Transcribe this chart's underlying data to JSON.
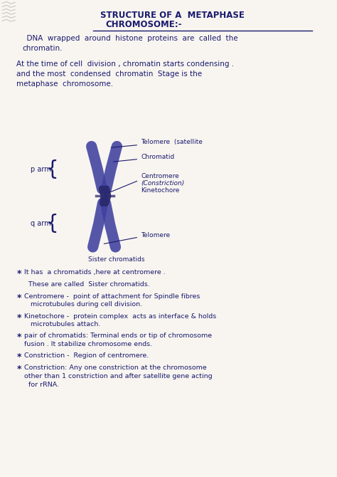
{
  "bg_color": "#f8f5f0",
  "text_color": "#1a1a6e",
  "chrom_color": "#4040a0",
  "chrom_dark": "#2a2a70",
  "title_line1": "STRUCTURE OF A  METAPHASE",
  "title_line2": "CHROMOSOME:-",
  "para1": "  DNA  wrapped  around  histone  proteins  are  called  the\nchromatin.",
  "para2": "At the time of cell  division , chromatin starts condensing .\nand the most  condensed  chromatin  Stage is the\nmetaphase  chromosome.",
  "p_arm_label": "p arm",
  "q_arm_label": "q arm",
  "label_telomere_top": "Telomere  (satellite",
  "label_chromatid": "Chromatid",
  "label_centromere": "Centromere",
  "label_constriction": "(Constriction)",
  "label_kinetochore": "Kinetochore",
  "label_telomere_bot": "Telomere",
  "label_sister": "Sister chromatids",
  "bullet_texts": [
    [
      "*",
      "It has  a chromatids ,here at centromere ."
    ],
    [
      "",
      "  These are called  Sister chromatids."
    ],
    [
      "*",
      "Centromere -  point of attachment for Spindle fibres\n   microtubules during cell division."
    ],
    [
      "*",
      "Kinetochore -  protein complex  acts as interface & holds\n   microtubules attach."
    ],
    [
      "*",
      "pair of chromatids: Terminal ends or tip of chromosome\nfusion . It stabilize chromosome ends."
    ],
    [
      "*",
      "Constriction -  Region of centromere."
    ],
    [
      "*",
      "Constriction: Any one constriction at the chromosome\nother than 1 constriction and after satellite gene acting\n  for rRNA."
    ]
  ]
}
